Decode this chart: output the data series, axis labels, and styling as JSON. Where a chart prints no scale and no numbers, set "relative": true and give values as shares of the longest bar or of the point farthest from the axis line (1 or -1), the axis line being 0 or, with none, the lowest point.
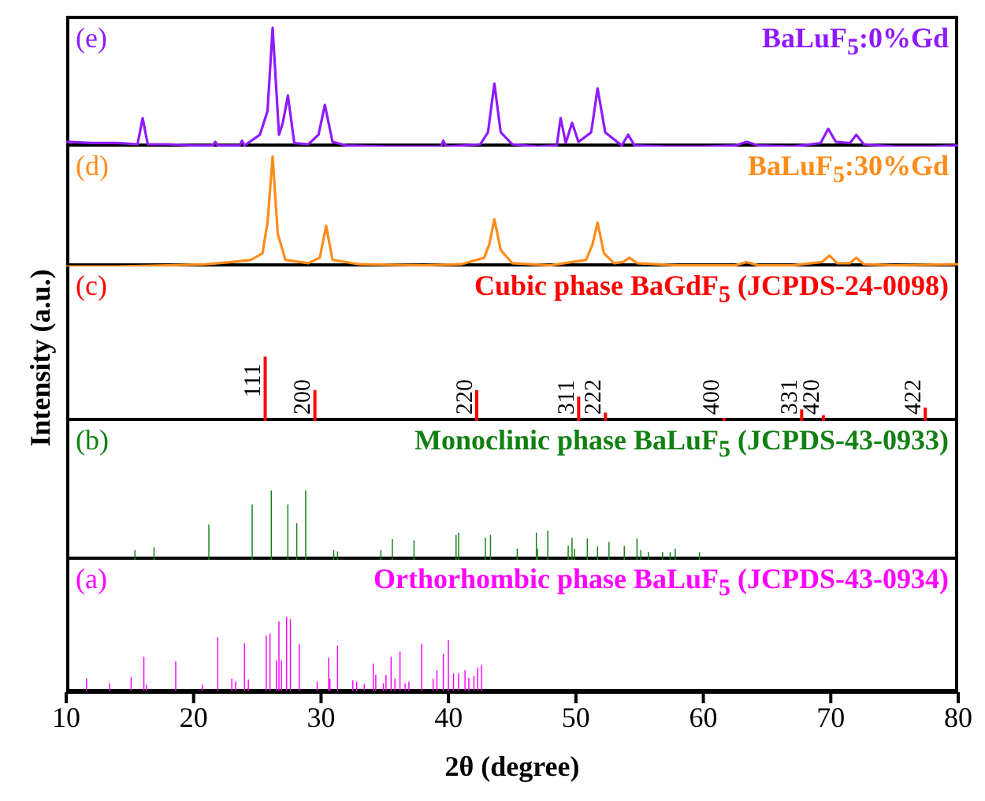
{
  "chart_data": [
    {
      "type": "line",
      "title": "BaLuF$_{5}$:0%Gd",
      "annotations": [
        "(e)"
      ],
      "relative": true,
      "xlim": [
        10,
        80
      ],
      "tick_labels": false,
      "color": "#8f1aff",
      "x": [
        10,
        12,
        14,
        15.6,
        16.0,
        16.4,
        18,
        20,
        21.5,
        21.7,
        21.9,
        23.6,
        23.8,
        24.0,
        25.2,
        25.8,
        26.2,
        26.7,
        27.0,
        27.4,
        27.9,
        29.0,
        29.8,
        30.3,
        30.9,
        32,
        35,
        38,
        39.4,
        39.6,
        39.8,
        42.5,
        43.1,
        43.6,
        44.1,
        45,
        47,
        48.5,
        48.8,
        49.2,
        49.7,
        50.2,
        51.2,
        51.7,
        52.3,
        53.6,
        54.1,
        54.6,
        57,
        60,
        62.5,
        63.4,
        64.3,
        67,
        69.2,
        69.8,
        70.4,
        71.5,
        72.0,
        72.6,
        75,
        78,
        80
      ],
      "values": [
        0.04,
        0.03,
        0.03,
        0.02,
        0.24,
        0.02,
        0.02,
        0.01,
        0.01,
        0.04,
        0.01,
        0.01,
        0.05,
        0.01,
        0.1,
        0.3,
        1,
        0.1,
        0.2,
        0.43,
        0.03,
        0.02,
        0.1,
        0.35,
        0.04,
        0.01,
        0,
        0,
        0,
        0.05,
        0,
        0.02,
        0.12,
        0.53,
        0.12,
        0.02,
        0,
        0.01,
        0.24,
        0.03,
        0.2,
        0.04,
        0.12,
        0.49,
        0.12,
        0.01,
        0.1,
        0.01,
        0,
        0,
        0.01,
        0.04,
        0.01,
        0,
        0.03,
        0.15,
        0.04,
        0.03,
        0.1,
        0.02,
        0,
        0,
        0.01
      ]
    },
    {
      "type": "line",
      "title": "BaLuF$_{5}$:30%Gd",
      "annotations": [
        "(d)"
      ],
      "relative": true,
      "xlim": [
        10,
        80
      ],
      "tick_labels": false,
      "color": "#ff8c1a",
      "x": [
        10,
        14,
        18,
        21,
        23,
        24.5,
        25.4,
        25.8,
        26.2,
        26.6,
        27.2,
        29,
        29.9,
        30.4,
        30.9,
        33,
        38,
        41,
        42.8,
        43.2,
        43.6,
        44.1,
        45,
        48,
        50.8,
        51.3,
        51.7,
        52.2,
        53,
        53.7,
        54.2,
        54.8,
        58,
        62.5,
        63.4,
        64.3,
        67,
        69.3,
        69.9,
        70.5,
        71.5,
        72.0,
        72.6,
        75,
        80
      ],
      "values": [
        0,
        0,
        0.01,
        0.02,
        0.04,
        0.06,
        0.12,
        0.4,
        1,
        0.3,
        0.06,
        0.03,
        0.08,
        0.37,
        0.06,
        0.02,
        0.01,
        0.02,
        0.08,
        0.2,
        0.43,
        0.15,
        0.03,
        0.01,
        0.06,
        0.2,
        0.4,
        0.12,
        0.03,
        0.04,
        0.08,
        0.03,
        0.01,
        0.01,
        0.04,
        0.01,
        0.01,
        0.04,
        0.1,
        0.03,
        0.03,
        0.08,
        0.02,
        0.01,
        0.02
      ]
    },
    {
      "type": "bar",
      "title": "Cubic phase BaGdF$_{5}$ (JCPDS-24-0098)",
      "ylabel": "Intensity (a.u.)",
      "relative": true,
      "xlim": [
        10,
        80
      ],
      "tick_labels": false,
      "annotations": [
        "(c)",
        {
          "text": "111",
          "x": 25.6,
          "y": 1
        },
        {
          "text": "200",
          "x": 29.5,
          "y": 0.48
        },
        {
          "text": "220",
          "x": 42.2,
          "y": 0.48
        },
        {
          "text": "311",
          "x": 50.2,
          "y": 0.38
        },
        {
          "text": "222",
          "x": 52.3,
          "y": 0.13
        },
        {
          "text": "400",
          "x": 61.6,
          "y": 0.05
        },
        {
          "text": "331",
          "x": 67.7,
          "y": 0.18
        },
        {
          "text": "420",
          "x": 69.4,
          "y": 0.09
        },
        {
          "text": "422",
          "x": 77.4,
          "y": 0.21
        }
      ],
      "x": [
        25.6,
        29.5,
        42.2,
        50.2,
        52.3,
        61.6,
        67.7,
        69.4,
        77.4
      ],
      "values": [
        1,
        0.48,
        0.48,
        0.38,
        0.13,
        0.05,
        0.18,
        0.09,
        0.21
      ],
      "color": "#ff0000"
    },
    {
      "type": "bar",
      "title": "Monoclinic phase BaLuF$_{5}$ (JCPDS-43-0933)",
      "annotations": [
        "(b)"
      ],
      "relative": true,
      "xlim": [
        10,
        80
      ],
      "tick_labels": false,
      "x": [
        15.4,
        16.9,
        21.2,
        24.6,
        26.1,
        27.4,
        28.1,
        28.8,
        31.0,
        31.3,
        34.7,
        35.6,
        37.3,
        40.6,
        40.8,
        42.9,
        43.3,
        45.4,
        46.9,
        47.0,
        47.8,
        49.4,
        49.7,
        49.9,
        50.9,
        51.7,
        52.6,
        53.8,
        54.8,
        55.1,
        55.7,
        56.8,
        57.4,
        57.8,
        59.7
      ],
      "values": [
        0.14,
        0.18,
        0.51,
        0.8,
        1,
        0.8,
        0.53,
        1,
        0.14,
        0.12,
        0.14,
        0.3,
        0.28,
        0.36,
        0.39,
        0.32,
        0.36,
        0.16,
        0.39,
        0.16,
        0.42,
        0.2,
        0.32,
        0.16,
        0.31,
        0.19,
        0.26,
        0.2,
        0.31,
        0.14,
        0.11,
        0.11,
        0.11,
        0.16,
        0.11
      ],
      "color": "#128012"
    },
    {
      "type": "bar",
      "title": "Orthorhombic phase BaLuF$_{5}$ (JCPDS-43-0934)",
      "annotations": [
        "(a)"
      ],
      "xlabel": "2θ (degree)",
      "relative": true,
      "xlim": [
        10,
        80
      ],
      "xticks": [
        10,
        20,
        30,
        40,
        50,
        60,
        70,
        80
      ],
      "tick_labels": "x",
      "x": [
        11.6,
        13.4,
        15.1,
        16.1,
        16.3,
        18.6,
        20.7,
        21.9,
        23.0,
        23.3,
        24.0,
        24.3,
        25.7,
        26.0,
        26.5,
        26.7,
        26.9,
        27.3,
        27.6,
        28.3,
        29.7,
        30.6,
        30.7,
        31.3,
        32.5,
        32.8,
        33.4,
        34.1,
        34.3,
        34.9,
        35.1,
        35.5,
        35.8,
        36.2,
        36.6,
        36.9,
        37.9,
        38.8,
        39.1,
        39.6,
        40.0,
        40.4,
        40.8,
        41.3,
        41.6,
        42.0,
        42.3,
        42.6
      ],
      "values": [
        0.18,
        0.12,
        0.2,
        0.47,
        0.1,
        0.41,
        0.1,
        0.73,
        0.18,
        0.14,
        0.65,
        0.17,
        0.75,
        0.78,
        0.42,
        0.94,
        0.42,
        1,
        0.97,
        0.64,
        0.14,
        0.46,
        0.18,
        0.62,
        0.16,
        0.14,
        0.11,
        0.38,
        0.23,
        0.12,
        0.23,
        0.47,
        0.18,
        0.54,
        0.12,
        0.14,
        0.64,
        0.18,
        0.29,
        0.51,
        0.69,
        0.25,
        0.25,
        0.29,
        0.19,
        0.22,
        0.33,
        0.36
      ],
      "color": "#ff00ff"
    }
  ]
}
